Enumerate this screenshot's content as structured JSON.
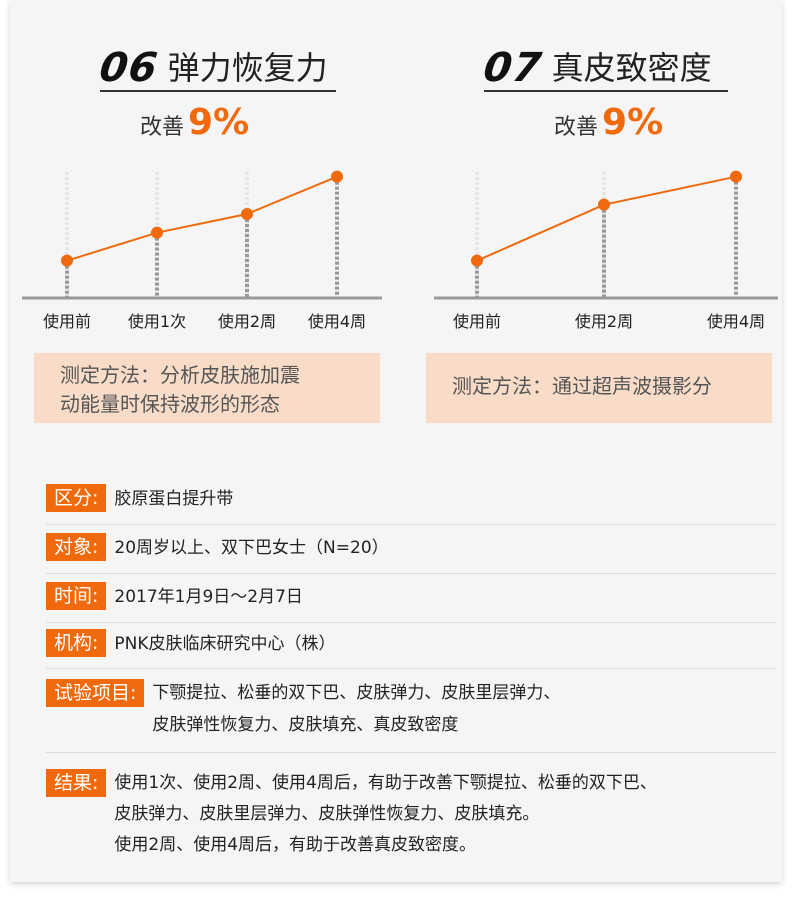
{
  "panels": [
    {
      "number": "06",
      "title": "弹力恢复力",
      "improve_label": "改善",
      "improve_value": "9%",
      "method": [
        "测定方法：分析皮肤施加震",
        "动能量时保持波形的形态"
      ]
    },
    {
      "number": "07",
      "title": "真皮致密度",
      "improve_label": "改善",
      "improve_value": "9%",
      "method": [
        "测定方法：通过超声波摄影分"
      ]
    }
  ],
  "chart_data": [
    {
      "type": "line",
      "categories": [
        "使用前",
        "使用1次",
        "使用2周",
        "使用4周"
      ],
      "values": [
        100,
        103,
        105,
        109
      ],
      "ylim": [
        96,
        111
      ],
      "grid": false,
      "color": "#f06a0d"
    },
    {
      "type": "line",
      "categories": [
        "使用前",
        "使用2周",
        "使用4周"
      ],
      "values": [
        100,
        106,
        109
      ],
      "ylim": [
        96,
        111
      ],
      "grid": false,
      "color": "#f06a0d"
    }
  ],
  "info": [
    {
      "tag": "区分:",
      "lines": [
        "胶原蛋白提升带"
      ]
    },
    {
      "tag": "对象:",
      "lines": [
        "20周岁以上、双下巴女士（N=20）"
      ]
    },
    {
      "tag": "时间:",
      "lines": [
        "2017年1月9日～2月7日"
      ]
    },
    {
      "tag": "机构:",
      "lines": [
        "PNK皮肤临床研究中心（株）"
      ]
    },
    {
      "tag": "试验项目:",
      "lines": [
        "下颚提拉、松垂的双下巴、皮肤弹力、皮肤里层弹力、",
        "皮肤弹性恢复力、皮肤填充、真皮致密度"
      ]
    },
    {
      "tag": "结果:",
      "lines": [
        "使用1次、使用2周、使用4周后，有助于改善下颚提拉、松垂的双下巴、",
        "皮肤弹力、皮肤里层弹力、皮肤弹性恢复力、皮肤填充。",
        "使用2周、使用4周后，有助于改善真皮致密度。"
      ]
    }
  ],
  "colors": {
    "accent": "#f06a0d",
    "method_bg": "#f8dcc8",
    "axis": "#999999"
  }
}
